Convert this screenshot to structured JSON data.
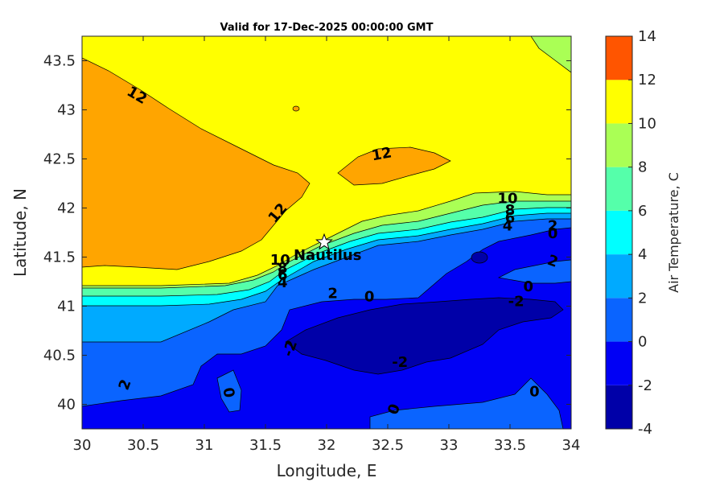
{
  "chart_data": {
    "type": "contour",
    "title": "Valid for 17-Dec-2025 00:00:00 GMT",
    "xlabel": "Longitude, E",
    "ylabel": "Latitude, N",
    "xlim": [
      30,
      34
    ],
    "ylim": [
      39.75,
      43.75
    ],
    "xticks": [
      "30",
      "30.5",
      "31",
      "31.5",
      "32",
      "32.5",
      "33",
      "33.5",
      "34"
    ],
    "yticks": [
      "40",
      "40.5",
      "41",
      "41.5",
      "42",
      "42.5",
      "43",
      "43.5"
    ],
    "colorbar": {
      "label": "Air Temperature, C",
      "ticks": [
        "-4",
        "-2",
        "0",
        "2",
        "4",
        "6",
        "8",
        "10",
        "12",
        "14"
      ],
      "levels": [
        {
          "from": -4,
          "to": -2,
          "color": "#0000a8"
        },
        {
          "from": -2,
          "to": 0,
          "color": "#0000f5"
        },
        {
          "from": 0,
          "to": 2,
          "color": "#0a64ff"
        },
        {
          "from": 2,
          "to": 4,
          "color": "#00aaff"
        },
        {
          "from": 4,
          "to": 6,
          "color": "#00ffff"
        },
        {
          "from": 6,
          "to": 8,
          "color": "#55ffaa"
        },
        {
          "from": 8,
          "to": 10,
          "color": "#aaff55"
        },
        {
          "from": 10,
          "to": 12,
          "color": "#ffff00"
        },
        {
          "from": 12,
          "to": 14,
          "color": "#ffa500"
        }
      ],
      "top_color": "#ff5500"
    },
    "contour_labels": [
      {
        "text": "12",
        "lon": 30.45,
        "lat": 43.15,
        "rotate": 30
      },
      {
        "text": "12",
        "lon": 32.45,
        "lat": 42.55,
        "rotate": -10
      },
      {
        "text": "12",
        "lon": 31.6,
        "lat": 41.95,
        "rotate": -50
      },
      {
        "text": "10",
        "lon": 33.48,
        "lat": 42.1,
        "rotate": 0
      },
      {
        "text": "8",
        "lon": 33.5,
        "lat": 41.98,
        "rotate": 0
      },
      {
        "text": "6",
        "lon": 33.5,
        "lat": 41.9,
        "rotate": 0
      },
      {
        "text": "4",
        "lon": 33.48,
        "lat": 41.82,
        "rotate": 0
      },
      {
        "text": "2",
        "lon": 33.85,
        "lat": 41.82,
        "rotate": 0
      },
      {
        "text": "0",
        "lon": 33.85,
        "lat": 41.74,
        "rotate": 0
      },
      {
        "text": "2",
        "lon": 33.85,
        "lat": 41.46,
        "rotate": 20
      },
      {
        "text": "0",
        "lon": 33.65,
        "lat": 41.2,
        "rotate": 0
      },
      {
        "text": "-2",
        "lon": 33.55,
        "lat": 41.05,
        "rotate": 0
      },
      {
        "text": "10",
        "lon": 31.62,
        "lat": 41.47,
        "rotate": 0
      },
      {
        "text": "8",
        "lon": 31.64,
        "lat": 41.39,
        "rotate": 0
      },
      {
        "text": "6",
        "lon": 31.64,
        "lat": 41.32,
        "rotate": 0
      },
      {
        "text": "4",
        "lon": 31.64,
        "lat": 41.24,
        "rotate": 0
      },
      {
        "text": "2",
        "lon": 32.05,
        "lat": 41.13,
        "rotate": 0
      },
      {
        "text": "0",
        "lon": 32.35,
        "lat": 41.1,
        "rotate": 0
      },
      {
        "text": "-2",
        "lon": 31.7,
        "lat": 40.57,
        "rotate": -70
      },
      {
        "text": "-2",
        "lon": 32.6,
        "lat": 40.43,
        "rotate": 0
      },
      {
        "text": "2",
        "lon": 30.35,
        "lat": 40.2,
        "rotate": -70
      },
      {
        "text": "0",
        "lon": 31.2,
        "lat": 40.12,
        "rotate": 80
      },
      {
        "text": "0",
        "lon": 32.55,
        "lat": 39.95,
        "rotate": -70
      },
      {
        "text": "0",
        "lon": 33.7,
        "lat": 40.13,
        "rotate": 0
      }
    ],
    "marker": {
      "label": "Nautilus",
      "lon": 31.98,
      "lat": 41.65,
      "symbol": "star"
    }
  }
}
